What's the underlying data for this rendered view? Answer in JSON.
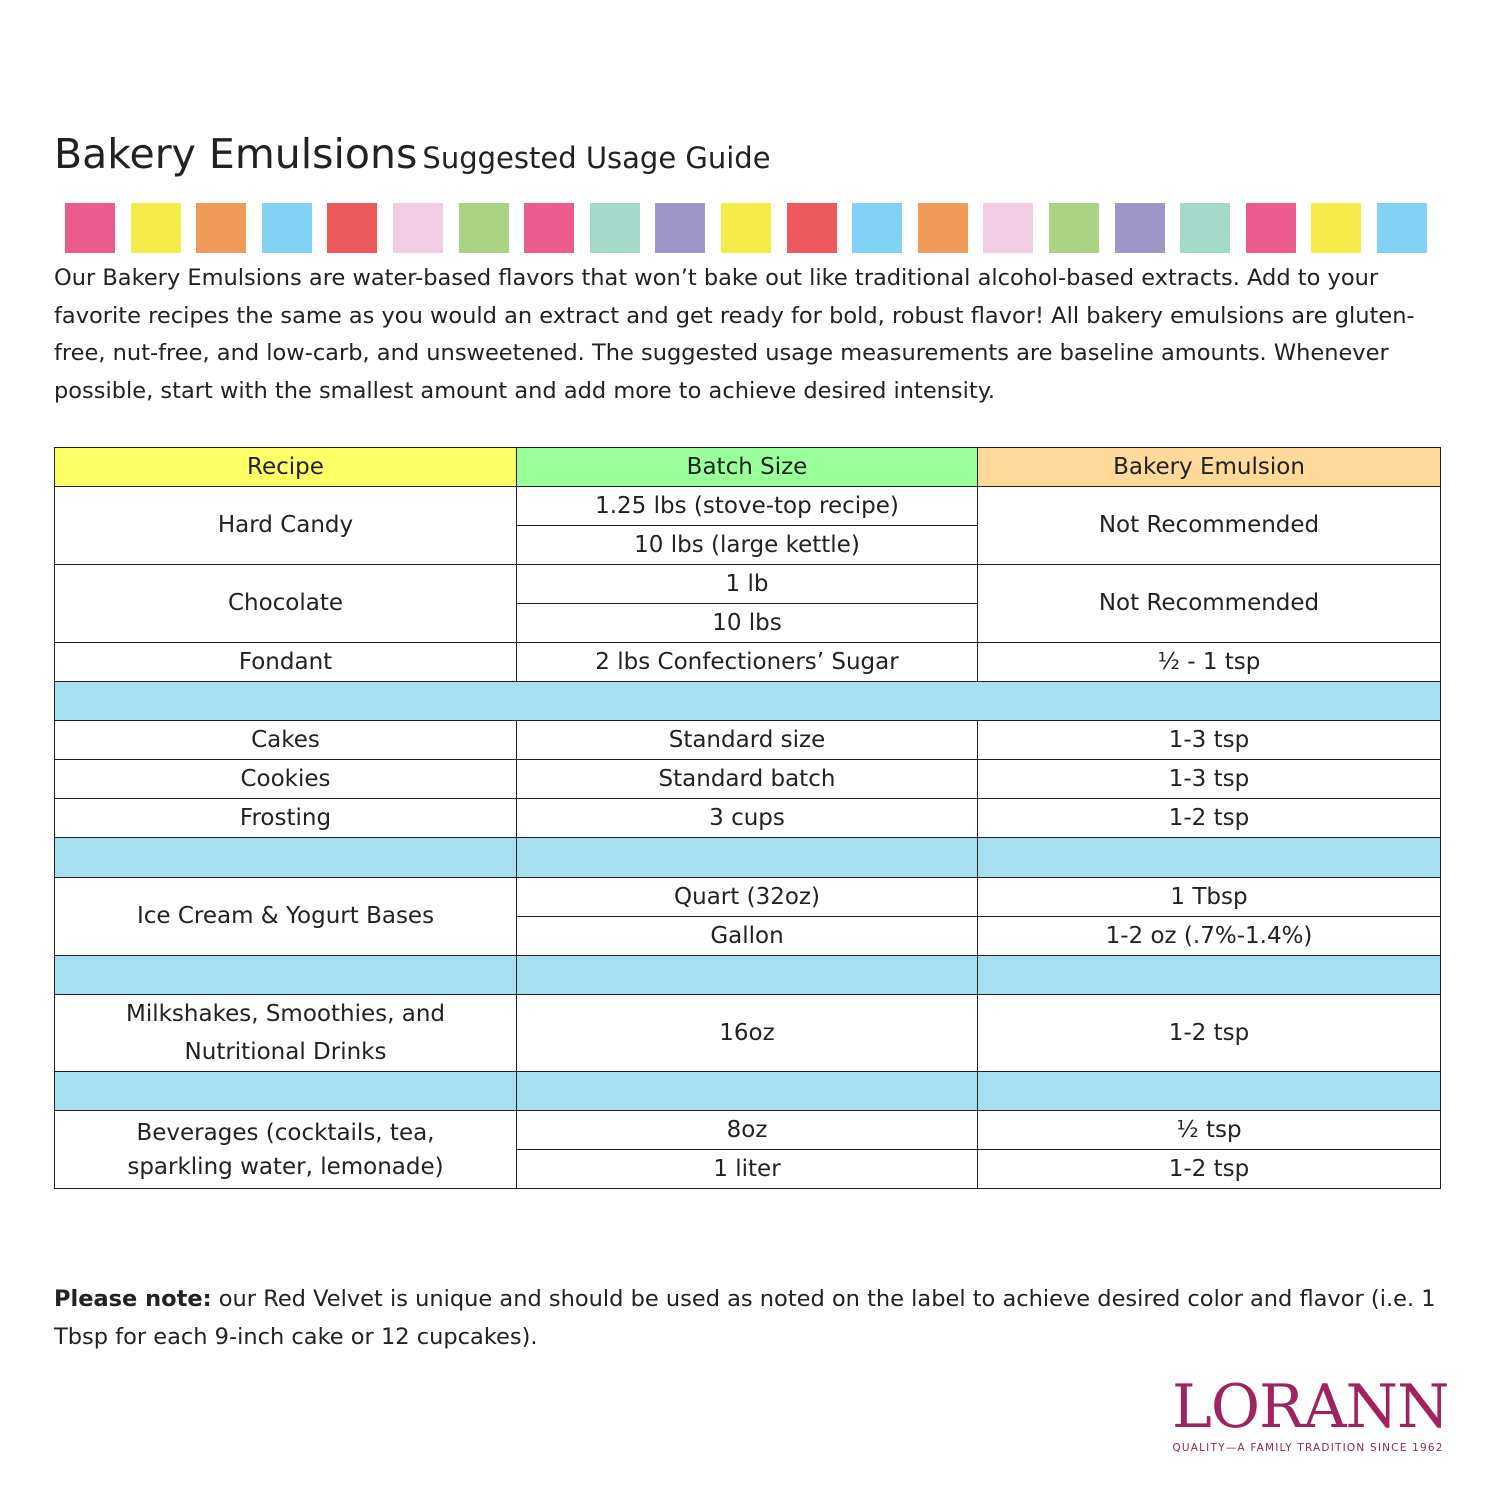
{
  "title": {
    "main": "Bakery Emulsions",
    "sub": "Suggested Usage Guide"
  },
  "swatch_colors": [
    "#ec5b8e",
    "#f4ea4a",
    "#f09a5a",
    "#82d2f6",
    "#ec5a5b",
    "#f2cce2",
    "#aad484",
    "#ec5b8e",
    "#a3d9c8",
    "#9e95c8",
    "#f4ea4a",
    "#ec5a5b",
    "#82d2f6",
    "#f09a5a",
    "#f2cce2",
    "#aad484",
    "#9e95c8",
    "#a3d9c8",
    "#ec5b8e",
    "#f4ea4a",
    "#82d2f6"
  ],
  "intro": "Our Bakery Emulsions are water-based flavors that won’t bake out like traditional alcohol-based extracts. Add to your favorite recipes the same as you would an extract and get ready for bold, robust flavor! All bakery emulsions are gluten-free, nut-free, and low-carb, and unsweetened. The suggested usage measurements are baseline amounts. Whenever possible, start with the smallest amount and add more to achieve desired intensity.",
  "table": {
    "headers": [
      "Recipe",
      "Batch Size",
      "Bakery Emulsion"
    ],
    "header_colors": [
      "#ffff66",
      "#99ff99",
      "#ffd999"
    ],
    "separator_color": "#a6dff0",
    "hard_candy": {
      "recipe": "Hard Candy",
      "batch": [
        "1.25 lbs (stove-top recipe)",
        "10 lbs (large kettle)"
      ],
      "amount": "Not Recommended"
    },
    "chocolate": {
      "recipe": "Chocolate",
      "batch": [
        "1 lb",
        "10 lbs"
      ],
      "amount": "Not Recommended"
    },
    "fondant": {
      "recipe": "Fondant",
      "batch": "2 lbs Confectioners’ Sugar",
      "amount": "½ - 1 tsp"
    },
    "cakes": {
      "recipe": "Cakes",
      "batch": "Standard size",
      "amount": "1-3 tsp"
    },
    "cookies": {
      "recipe": "Cookies",
      "batch": "Standard batch",
      "amount": "1-3 tsp"
    },
    "frosting": {
      "recipe": "Frosting",
      "batch": "3 cups",
      "amount": "1-2 tsp"
    },
    "ice_cream": {
      "recipe": "Ice Cream & Yogurt Bases",
      "batch": [
        "Quart (32oz)",
        "Gallon"
      ],
      "amount": [
        "1 Tbsp",
        "1-2 oz (.7%-1.4%)"
      ]
    },
    "milkshakes": {
      "recipe_lines": [
        "Milkshakes, Smoothies, and",
        "Nutritional Drinks"
      ],
      "batch": "16oz",
      "amount": "1-2 tsp"
    },
    "beverages": {
      "recipe_lines": [
        "Beverages (cocktails, tea,",
        "sparkling water, lemonade)"
      ],
      "batch": [
        "8oz",
        "1 liter"
      ],
      "amount": [
        "½ tsp",
        "1-2 tsp"
      ]
    }
  },
  "note": {
    "label": "Please note:",
    "text": " our Red Velvet is unique and should be used as noted on the label to achieve desired color and flavor (i.e. 1 Tbsp for each 9-inch cake or 12 cupcakes)."
  },
  "logo": {
    "word": "LORANN",
    "tagline": "QUALITY—A FAMILY TRADITION SINCE 1962"
  }
}
